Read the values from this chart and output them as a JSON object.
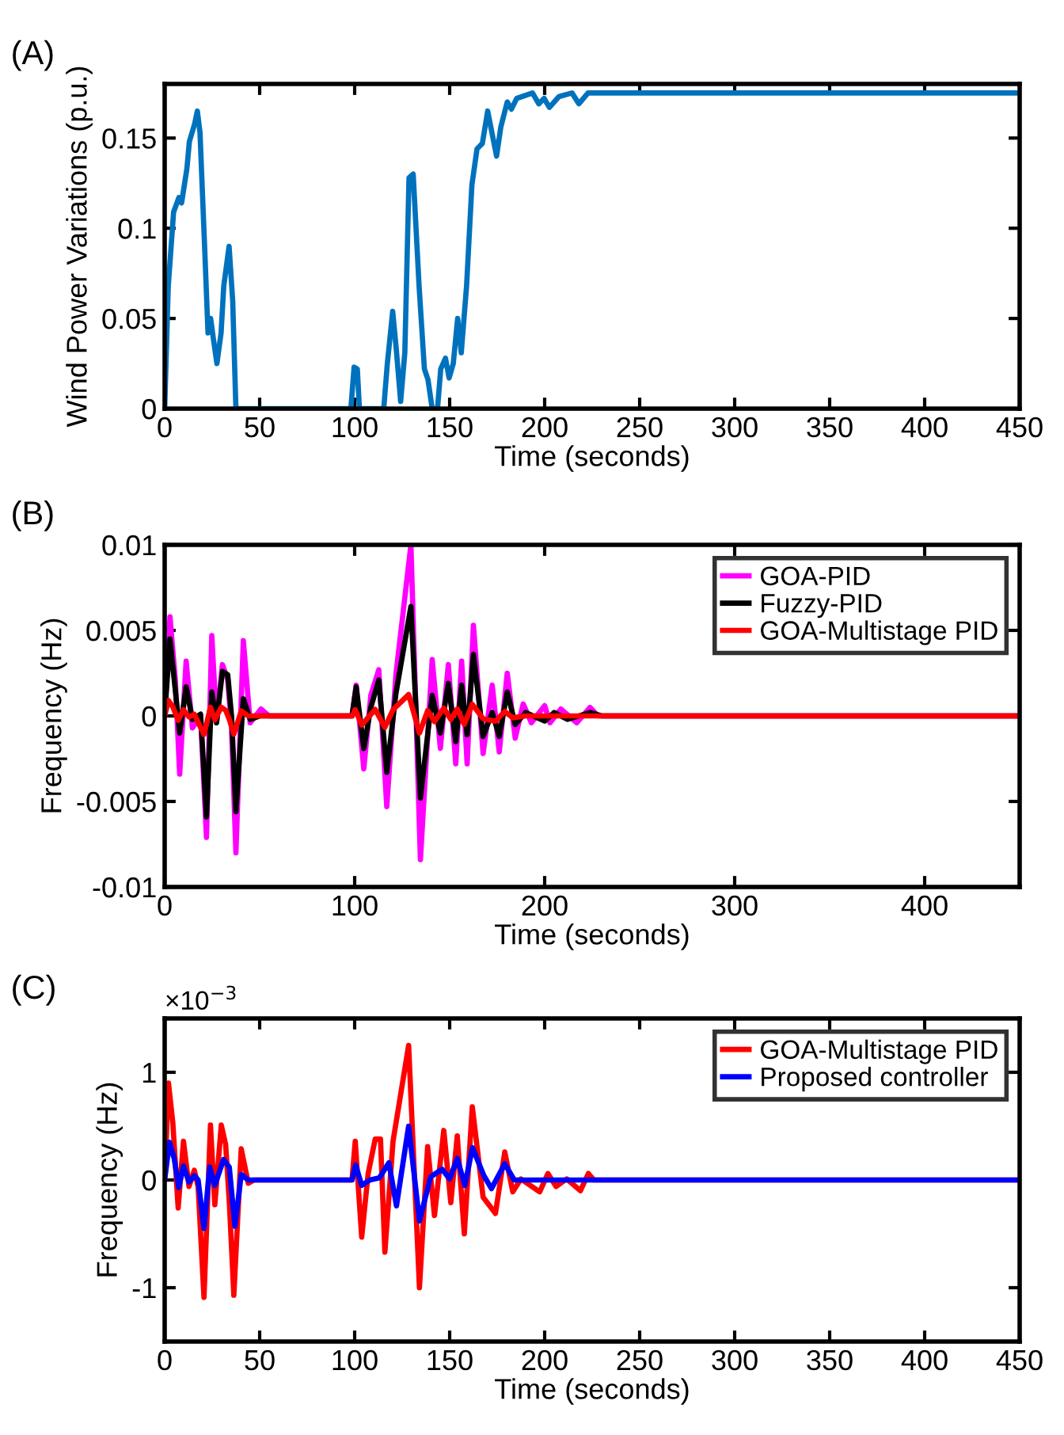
{
  "chart_data": [
    {
      "type": "line",
      "title": "(A)",
      "xlabel": "Time (seconds)",
      "ylabel": "Wind Power Variations (p.u.)",
      "xlim": [
        0,
        450
      ],
      "ylim": [
        0,
        0.18
      ],
      "xticks": [
        0,
        50,
        100,
        150,
        200,
        250,
        300,
        350,
        400,
        450
      ],
      "yticks": [
        0,
        0.05,
        0.1,
        0.15
      ],
      "series": [
        {
          "color": "#0072bd",
          "x": [
            0,
            1.9,
            4.7,
            7.5,
            8.9,
            11.7,
            13,
            15.8,
            17.2,
            18.6,
            21.4,
            22.8,
            24.2,
            25.6,
            27.5,
            29.7,
            31.1,
            33.9,
            35.8,
            37.5,
            98,
            99.7,
            101.4,
            102.5,
            115.3,
            117.2,
            120,
            121.9,
            124.2,
            126.4,
            128.6,
            130.8,
            133.9,
            136.7,
            138.6,
            140.8,
            143.6,
            145.3,
            147.8,
            149.7,
            151.9,
            154.2,
            156.1,
            158.9,
            161.7,
            164.4,
            167.2,
            170,
            172.8,
            174.7,
            176.9,
            180.3,
            182.5,
            185.3,
            193.6,
            196.9,
            199.7,
            202.5,
            207.5,
            214.4,
            218,
            222.8,
            450
          ],
          "values": [
            0,
            0.068,
            0.109,
            0.117,
            0.114,
            0.133,
            0.148,
            0.158,
            0.165,
            0.153,
            0.08,
            0.042,
            0.05,
            0.039,
            0.025,
            0.042,
            0.068,
            0.09,
            0.06,
            0,
            0,
            0.023,
            0.022,
            0,
            0,
            0.025,
            0.054,
            0.033,
            0.004,
            0.031,
            0.128,
            0.13,
            0.068,
            0.022,
            0.016,
            0,
            0,
            0.022,
            0.028,
            0.017,
            0.025,
            0.05,
            0.031,
            0.068,
            0.124,
            0.144,
            0.147,
            0.165,
            0.15,
            0.14,
            0.156,
            0.17,
            0.166,
            0.172,
            0.175,
            0.169,
            0.172,
            0.167,
            0.173,
            0.175,
            0.169,
            0.175,
            0.175
          ]
        }
      ]
    },
    {
      "type": "line",
      "title": "(B)",
      "xlabel": "Time (seconds)",
      "ylabel": "Frequency (Hz)",
      "xlim": [
        0,
        450
      ],
      "ylim": [
        -0.01,
        0.01
      ],
      "xticks": [
        0,
        100,
        200,
        300,
        400
      ],
      "yticks": [
        -0.01,
        -0.005,
        0,
        0.005,
        0.01
      ],
      "legend": "top right",
      "series": [
        {
          "name": "GOA-PID",
          "color": "#ff00ff",
          "x": [
            0,
            2.8,
            5.6,
            7.9,
            11.3,
            14.6,
            18.9,
            22,
            24.8,
            27.3,
            30.4,
            33.2,
            35.2,
            37.5,
            41.4,
            45,
            50.7,
            54.9,
            98.6,
            100.8,
            104.8,
            108.5,
            112.7,
            116.9,
            121.7,
            129.6,
            134.6,
            140.8,
            145.1,
            149.3,
            153.2,
            156.3,
            159.2,
            162.5,
            167.6,
            172.4,
            176.1,
            180.3,
            184.5,
            188.7,
            193,
            200,
            202.8,
            208.5,
            216.9,
            223.9,
            228,
            450
          ],
          "values": [
            0,
            0.0058,
            0.0021,
            -0.0034,
            0.0032,
            -0.0007,
            0,
            -0.0071,
            0.0047,
            -0.0004,
            0.003,
            0.0021,
            -0.0007,
            -0.008,
            0.0044,
            -0.0004,
            0.0004,
            0,
            0,
            0.0018,
            -0.0031,
            0.0012,
            0.0027,
            -0.0053,
            0.0024,
            0.01,
            -0.0084,
            0.0033,
            -0.0019,
            0.003,
            -0.0028,
            0.0032,
            -0.0028,
            0.0053,
            -0.0022,
            0.0018,
            -0.0021,
            0.0025,
            -0.0013,
            0.0007,
            -0.0004,
            0.0006,
            -0.0004,
            0.0004,
            -0.0004,
            0.0005,
            0,
            0
          ]
        },
        {
          "name": "Fuzzy-PID",
          "color": "#000000",
          "x": [
            0,
            2.8,
            5.6,
            7.9,
            11.3,
            14.6,
            18.9,
            22,
            24.8,
            27.3,
            30.4,
            33.2,
            35.2,
            37.5,
            41.4,
            45,
            50,
            98.6,
            100.8,
            104.8,
            108.5,
            112.7,
            116.9,
            121.7,
            129.6,
            134.6,
            140.8,
            145.1,
            149.3,
            153.2,
            156.3,
            159.2,
            162.5,
            167.6,
            172.4,
            176.1,
            180.3,
            184.5,
            190,
            200,
            205,
            212,
            224,
            230,
            450
          ],
          "values": [
            0,
            0.0045,
            0.0015,
            -0.001,
            0.0017,
            -0.0002,
            0.0001,
            -0.0059,
            0.0014,
            -0.0004,
            0.0026,
            0.0024,
            0,
            -0.0056,
            0.001,
            -0.0002,
            0,
            0,
            0.0017,
            -0.0019,
            0.0005,
            0.0021,
            -0.0033,
            0.0013,
            0.0064,
            -0.0048,
            0.0012,
            -0.001,
            0.0019,
            -0.0015,
            0.0018,
            -0.0011,
            0.0036,
            -0.0012,
            0.0002,
            -0.0012,
            0.0014,
            -0.0005,
            0.0002,
            -0.0003,
            0.0002,
            -0.0002,
            0.0002,
            0,
            0
          ]
        },
        {
          "name": "GOA-Multistage PID",
          "color": "#ff0000",
          "x": [
            0,
            2,
            4.3,
            7.1,
            9.9,
            12.8,
            15.6,
            20.7,
            24.1,
            26.4,
            29.8,
            32.1,
            34.1,
            36.4,
            40.3,
            44,
            98.6,
            100.3,
            103.7,
            110.8,
            115.9,
            120.2,
            128.4,
            134.1,
            138.4,
            142,
            146.9,
            150.6,
            154,
            157.7,
            161.9,
            167.6,
            174.1,
            179,
            183.2,
            190,
            450
          ],
          "values": [
            0,
            0.0009,
            0.00053,
            -0.00026,
            0.00036,
            -6e-05,
            9e-05,
            -0.00109,
            0.00051,
            -0.00023,
            0.00051,
            0.00033,
            -0.00023,
            -0.00107,
            0.00029,
            0,
            0,
            0.00036,
            -0.00053,
            0.00038,
            -0.00067,
            0.00036,
            0.00125,
            -0.001,
            0.00031,
            -0.00033,
            0.00046,
            -0.00021,
            0.00041,
            -0.0005,
            0.00068,
            -0.00016,
            -0.00031,
            0.00026,
            -0.00011,
            0,
            0
          ]
        }
      ]
    },
    {
      "type": "line",
      "title": "(C)",
      "xlabel": "Time (seconds)",
      "ylabel": "Frequency (Hz)",
      "xlim": [
        0,
        450
      ],
      "ylim": [
        -1.5,
        1.5
      ],
      "xticks": [
        0,
        50,
        100,
        150,
        200,
        250,
        300,
        350,
        400,
        450
      ],
      "yticks": [
        -1,
        0,
        1
      ],
      "legend": "top right",
      "annotations": [
        "×10$^{−3}$"
      ],
      "series": [
        {
          "name": "GOA-Multistage PID",
          "color": "#ff0000",
          "x": [
            0,
            2,
            4.3,
            7.1,
            9.9,
            12.8,
            15.6,
            17.6,
            20.7,
            24.1,
            26.4,
            29.8,
            32.1,
            34.1,
            36.4,
            40.3,
            44,
            46.9,
            98.6,
            100.3,
            103.7,
            107.1,
            110.8,
            113.6,
            115.9,
            120.2,
            128.4,
            134.1,
            138.4,
            142,
            146.9,
            150.6,
            154,
            157.7,
            161.9,
            167.6,
            174.1,
            179,
            183.2,
            187.5,
            197.4,
            201.7,
            206,
            211.6,
            218.8,
            223,
            225.9,
            450
          ],
          "values": [
            0,
            0.9,
            0.53,
            -0.26,
            0.36,
            -0.06,
            0.09,
            -0.06,
            -1.09,
            0.51,
            -0.23,
            0.51,
            0.33,
            -0.23,
            -1.07,
            0.29,
            -0.03,
            0,
            0,
            0.36,
            -0.53,
            0.06,
            0.38,
            0.38,
            -0.67,
            0.36,
            1.25,
            -1.0,
            0.31,
            -0.33,
            0.46,
            -0.21,
            0.41,
            -0.5,
            0.68,
            -0.16,
            -0.31,
            0.26,
            -0.11,
            0.01,
            -0.11,
            0.06,
            -0.06,
            0.01,
            -0.1,
            0.06,
            0,
            0
          ]
        },
        {
          "name": "Proposed controller",
          "color": "#0000ff",
          "x": [
            0,
            2.5,
            5,
            7.4,
            9.9,
            12.8,
            15.6,
            17.6,
            20.7,
            23.7,
            26.4,
            31,
            34,
            37,
            40.3,
            44,
            98.6,
            100.5,
            103.7,
            108,
            113,
            118,
            122,
            128.4,
            134.1,
            140,
            146,
            150,
            154,
            158,
            162,
            168,
            172,
            179,
            184,
            190,
            450
          ],
          "values": [
            0,
            0.35,
            0.2,
            -0.07,
            0.13,
            -0.02,
            0.04,
            0,
            -0.45,
            0.12,
            -0.05,
            0.19,
            0.12,
            -0.43,
            0.05,
            0,
            0,
            0.14,
            -0.05,
            0,
            0.02,
            0.16,
            -0.24,
            0.5,
            -0.38,
            0.03,
            0.1,
            0.01,
            0.2,
            -0.05,
            0.3,
            0.04,
            -0.08,
            0.15,
            0,
            0,
            0
          ]
        }
      ]
    }
  ]
}
